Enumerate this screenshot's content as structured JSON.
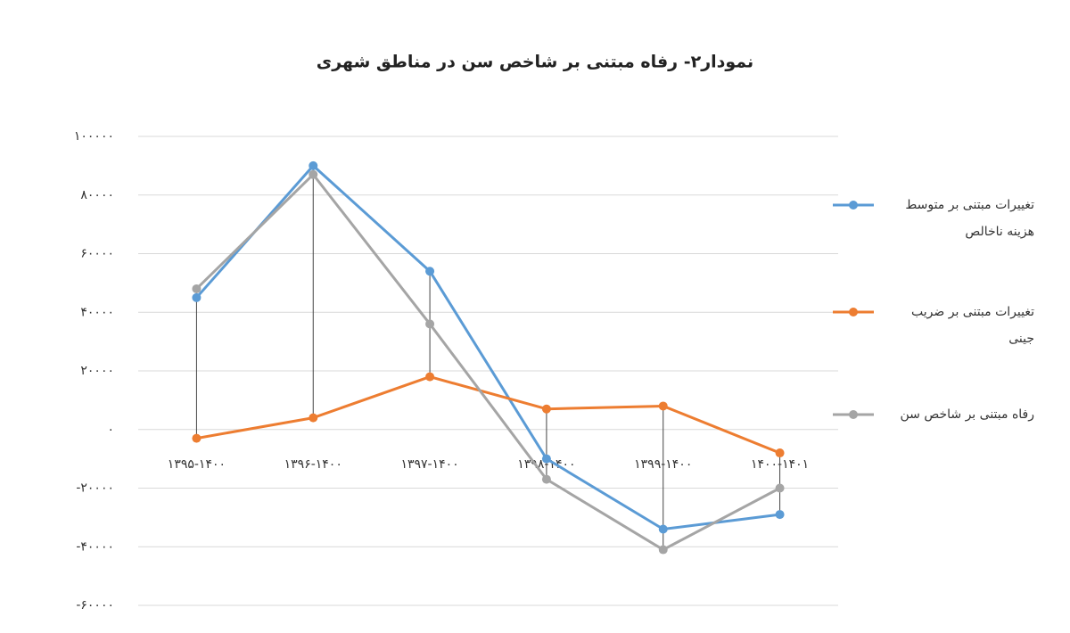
{
  "chart_data": {
    "type": "line",
    "title": "نمودار۲- رفاه مبتنی بر شاخص سن در مناطق شهری",
    "categories": [
      "۱۳۹۵-۱۴۰۰",
      "۱۳۹۶-۱۴۰۰",
      "۱۳۹۷-۱۴۰۰",
      "۱۳۹۸-۱۴۰۰",
      "۱۳۹۹-۱۴۰۰",
      "۱۴۰۰-۱۴۰۱"
    ],
    "series": [
      {
        "name": "تغییرات مبتنی بر متوسط هزینه ناخالص",
        "color": "#5b9bd5",
        "values": [
          45000,
          90000,
          54000,
          -10000,
          -34000,
          -29000
        ]
      },
      {
        "name": "تغییرات مبتنی بر ضریب جینی",
        "color": "#ed7d31",
        "values": [
          -3000,
          4000,
          18000,
          7000,
          8000,
          -8000
        ]
      },
      {
        "name": "رفاه مبتنی بر شاخص سن",
        "color": "#a5a5a5",
        "values": [
          48000,
          87000,
          36000,
          -17000,
          -41000,
          -20000
        ]
      }
    ],
    "ylim": [
      -60000,
      100000
    ],
    "yticks": [
      {
        "value": -60000,
        "label": "-۶۰۰۰۰"
      },
      {
        "value": -40000,
        "label": "-۴۰۰۰۰"
      },
      {
        "value": -20000,
        "label": "-۲۰۰۰۰"
      },
      {
        "value": 0,
        "label": "۰"
      },
      {
        "value": 20000,
        "label": "۲۰۰۰۰"
      },
      {
        "value": 40000,
        "label": "۴۰۰۰۰"
      },
      {
        "value": 60000,
        "label": "۶۰۰۰۰"
      },
      {
        "value": 80000,
        "label": "۸۰۰۰۰"
      },
      {
        "value": 100000,
        "label": "۱۰۰۰۰۰"
      }
    ],
    "grid": true,
    "high_low_lines": true,
    "legend": "right"
  }
}
